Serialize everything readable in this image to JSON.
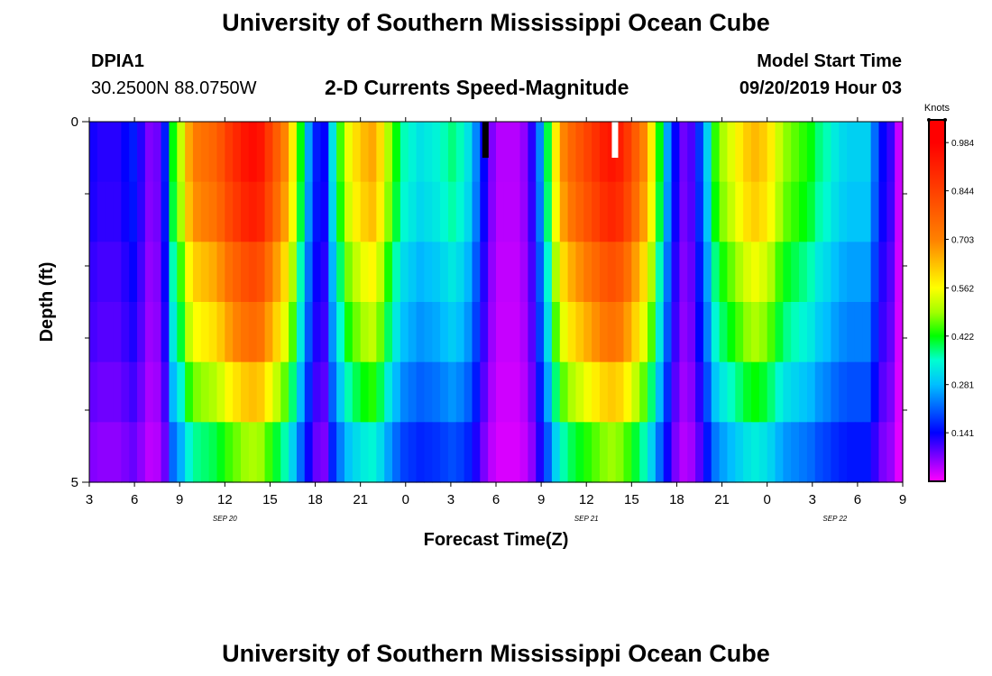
{
  "title": "University of Southern Mississippi Ocean Cube",
  "footer_title": "University of Southern Mississippi Ocean Cube",
  "station": {
    "id": "DPIA1",
    "coords": "30.2500N 88.0750W"
  },
  "subtitle": "2-D Currents Speed-Magnitude",
  "model": {
    "label": "Model Start Time",
    "time": "09/20/2019 Hour 03"
  },
  "chart_data": {
    "type": "heatmap",
    "title": "2-D Currents Speed-Magnitude",
    "xlabel": "Forecast Time(Z)",
    "ylabel": "Depth (ft)",
    "x_start_hour": 3,
    "x_end_hour": 57,
    "x_ticks": [
      {
        "hour": 3,
        "label": "3"
      },
      {
        "hour": 6,
        "label": "6"
      },
      {
        "hour": 9,
        "label": "9"
      },
      {
        "hour": 12,
        "label": "12"
      },
      {
        "hour": 15,
        "label": "15"
      },
      {
        "hour": 18,
        "label": "18"
      },
      {
        "hour": 21,
        "label": "21"
      },
      {
        "hour": 24,
        "label": "0"
      },
      {
        "hour": 27,
        "label": "3"
      },
      {
        "hour": 30,
        "label": "6"
      },
      {
        "hour": 33,
        "label": "9"
      },
      {
        "hour": 36,
        "label": "12"
      },
      {
        "hour": 39,
        "label": "15"
      },
      {
        "hour": 42,
        "label": "18"
      },
      {
        "hour": 45,
        "label": "21"
      },
      {
        "hour": 48,
        "label": "0"
      },
      {
        "hour": 51,
        "label": "3"
      },
      {
        "hour": 54,
        "label": "6"
      },
      {
        "hour": 57,
        "label": "9"
      }
    ],
    "date_labels": [
      {
        "hour": 12,
        "label": "SEP 20"
      },
      {
        "hour": 36,
        "label": "SEP 21"
      },
      {
        "hour": 52.5,
        "label": "SEP 22"
      }
    ],
    "y_range": [
      0,
      5
    ],
    "y_tick_labels": [
      {
        "depth": 0,
        "label": "0"
      },
      {
        "depth": 5,
        "label": "5"
      }
    ],
    "y_minor_ticks": [
      1,
      2,
      3,
      4
    ],
    "depth_levels": 5,
    "surface_profile": [
      0.13,
      0.12,
      0.12,
      0.12,
      0.14,
      0.16,
      0.12,
      0.07,
      0.08,
      0.16,
      0.42,
      0.52,
      0.66,
      0.72,
      0.74,
      0.76,
      0.8,
      0.86,
      0.9,
      0.94,
      0.96,
      0.94,
      0.86,
      0.78,
      0.7,
      0.58,
      0.42,
      0.26,
      0.16,
      0.14,
      0.32,
      0.45,
      0.55,
      0.6,
      0.64,
      0.66,
      0.6,
      0.5,
      0.42,
      0.36,
      0.34,
      0.32,
      0.33,
      0.34,
      0.36,
      0.38,
      0.36,
      0.32,
      0.24,
      0.14,
      0.07,
      0.04,
      0.04,
      0.04,
      0.06,
      0.12,
      0.24,
      0.4,
      0.58,
      0.7,
      0.76,
      0.8,
      0.84,
      0.88,
      0.92,
      0.94,
      0.92,
      0.86,
      0.78,
      0.7,
      0.58,
      0.42,
      0.26,
      0.14,
      0.08,
      0.1,
      0.18,
      0.3,
      0.44,
      0.5,
      0.54,
      0.58,
      0.62,
      0.64,
      0.62,
      0.58,
      0.52,
      0.48,
      0.46,
      0.44,
      0.42,
      0.38,
      0.36,
      0.33,
      0.31,
      0.3,
      0.3,
      0.3,
      0.22,
      0.14,
      0.11,
      0.03
    ],
    "depth_factors": [
      1.0,
      0.96,
      0.86,
      0.78,
      0.66,
      0.52
    ],
    "depth_factors_note": "one factor per 0.8-ft row from surface to bottom; speed = surface_profile * factor",
    "markers": [
      {
        "hour": 29.3,
        "depth_from": 0,
        "depth_to": 0.5,
        "color": "#000000"
      },
      {
        "hour": 37.9,
        "depth_from": 0,
        "depth_to": 0.5,
        "color": "#ffffff"
      }
    ],
    "colorbar": {
      "label": "Knots",
      "min": 0.0,
      "max": 1.05,
      "ticks": [
        "0.984",
        "0.844",
        "0.703",
        "0.562",
        "0.422",
        "0.281",
        "0.141"
      ],
      "tick_values": [
        0.984,
        0.844,
        0.703,
        0.562,
        0.422,
        0.281,
        0.141
      ]
    },
    "colormap": [
      {
        "v": 0.0,
        "color": "#ff00ff"
      },
      {
        "v": 0.07,
        "color": "#8000ff"
      },
      {
        "v": 0.141,
        "color": "#0000ff"
      },
      {
        "v": 0.281,
        "color": "#00bfff"
      },
      {
        "v": 0.352,
        "color": "#00ffd0"
      },
      {
        "v": 0.422,
        "color": "#00ff00"
      },
      {
        "v": 0.49,
        "color": "#a0ff00"
      },
      {
        "v": 0.562,
        "color": "#ffff00"
      },
      {
        "v": 0.703,
        "color": "#ff8000"
      },
      {
        "v": 0.844,
        "color": "#ff4000"
      },
      {
        "v": 0.984,
        "color": "#ff0000"
      },
      {
        "v": 1.05,
        "color": "#ff0000"
      }
    ]
  }
}
